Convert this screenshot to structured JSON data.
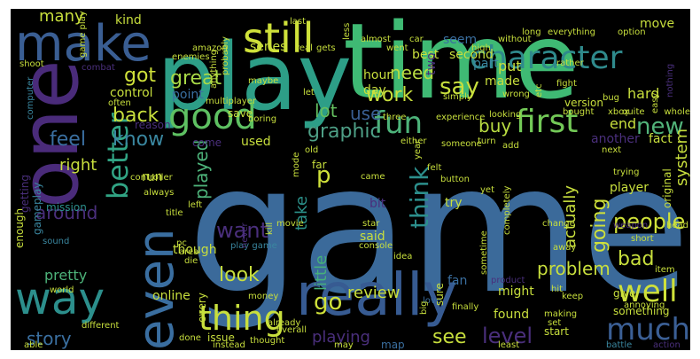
{
  "words": [
    {
      "text": "game",
      "size": 200,
      "color": "#3b6a9a",
      "rot": 0
    },
    {
      "text": "time",
      "size": 118,
      "color": "#3fba74",
      "rot": 0
    },
    {
      "text": "play",
      "size": 104,
      "color": "#2d9e87",
      "rot": 0
    },
    {
      "text": "one",
      "size": 90,
      "color": "#4a2b7a",
      "rot": 90
    },
    {
      "text": "make",
      "size": 56,
      "color": "#3a5e93",
      "rot": 0
    },
    {
      "text": "still",
      "size": 46,
      "color": "#cfe13a",
      "rot": 0
    },
    {
      "text": "character",
      "size": 36,
      "color": "#2f8a8c",
      "rot": 0
    },
    {
      "text": "even",
      "size": 56,
      "color": "#3a6ea0",
      "rot": 90
    },
    {
      "text": "really",
      "size": 66,
      "color": "#375b92",
      "rot": 0
    },
    {
      "text": "way",
      "size": 50,
      "color": "#2c8f8c",
      "rot": 0
    },
    {
      "text": "good",
      "size": 40,
      "color": "#5ec162",
      "rot": 0
    },
    {
      "text": "better",
      "size": 32,
      "color": "#31a484",
      "rot": 90
    },
    {
      "text": "thing",
      "size": 38,
      "color": "#c8df3d",
      "rot": 0
    },
    {
      "text": "fun",
      "size": 34,
      "color": "#4db37a",
      "rot": 0
    },
    {
      "text": "first",
      "size": 36,
      "color": "#73c957",
      "rot": 0
    },
    {
      "text": "well",
      "size": 34,
      "color": "#cfe13a",
      "rot": 0
    },
    {
      "text": "much",
      "size": 34,
      "color": "#3b5f95",
      "rot": 0
    },
    {
      "text": "think",
      "size": 28,
      "color": "#2c8f8c",
      "rot": 90
    },
    {
      "text": "people",
      "size": 24,
      "color": "#cfe13a",
      "rot": 0
    },
    {
      "text": "new",
      "size": 26,
      "color": "#52b37a",
      "rot": 0
    },
    {
      "text": "graphic",
      "size": 22,
      "color": "#4e9f86",
      "rot": 0
    },
    {
      "text": "great",
      "size": 22,
      "color": "#a9da47",
      "rot": 0
    },
    {
      "text": "got",
      "size": 22,
      "color": "#cfe13a",
      "rot": 0
    },
    {
      "text": "back",
      "size": 22,
      "color": "#c8df3d",
      "rot": 0
    },
    {
      "text": "say",
      "size": 26,
      "color": "#c8df3d",
      "rot": 0
    },
    {
      "text": "need",
      "size": 20,
      "color": "#b9dd42",
      "rot": 0
    },
    {
      "text": "work",
      "size": 22,
      "color": "#c8df3d",
      "rot": 0
    },
    {
      "text": "lot",
      "size": 20,
      "color": "#64bf5f",
      "rot": 0
    },
    {
      "text": "use",
      "size": 20,
      "color": "#3a5f93",
      "rot": 0
    },
    {
      "text": "buy",
      "size": 20,
      "color": "#b9dd42",
      "rot": 0
    },
    {
      "text": "know",
      "size": 22,
      "color": "#3a87a0",
      "rot": 0
    },
    {
      "text": "feel",
      "size": 22,
      "color": "#3a6fa0",
      "rot": 0
    },
    {
      "text": "right",
      "size": 18,
      "color": "#c8df3d",
      "rot": 0
    },
    {
      "text": "around",
      "size": 20,
      "color": "#4a2f7c",
      "rot": 0
    },
    {
      "text": "played",
      "size": 20,
      "color": "#4db37a",
      "rot": 90
    },
    {
      "text": "take",
      "size": 18,
      "color": "#2b9089",
      "rot": 90
    },
    {
      "text": "little",
      "size": 18,
      "color": "#46b07a",
      "rot": 90
    },
    {
      "text": "p",
      "size": 26,
      "color": "#cfe13a",
      "rot": 0
    },
    {
      "text": "want",
      "size": 24,
      "color": "#4a2f7c",
      "rot": 0
    },
    {
      "text": "look",
      "size": 22,
      "color": "#c8df3d",
      "rot": 0
    },
    {
      "text": "go",
      "size": 26,
      "color": "#cfe13a",
      "rot": 0
    },
    {
      "text": "review",
      "size": 18,
      "color": "#c8df3d",
      "rot": 0
    },
    {
      "text": "problem",
      "size": 20,
      "color": "#c8df3d",
      "rot": 0
    },
    {
      "text": "bad",
      "size": 22,
      "color": "#c8df3d",
      "rot": 0
    },
    {
      "text": "going",
      "size": 22,
      "color": "#cfe13a",
      "rot": 90
    },
    {
      "text": "actually",
      "size": 18,
      "color": "#c8df3d",
      "rot": 90
    },
    {
      "text": "see",
      "size": 22,
      "color": "#c8df3d",
      "rot": 0
    },
    {
      "text": "level",
      "size": 24,
      "color": "#4a2f7c",
      "rot": 0
    },
    {
      "text": "playing",
      "size": 18,
      "color": "#4a2f7c",
      "rot": 0
    },
    {
      "text": "story",
      "size": 20,
      "color": "#3a6fa0",
      "rot": 0
    },
    {
      "text": "pretty",
      "size": 16,
      "color": "#4db37a",
      "rot": 0
    },
    {
      "text": "system",
      "size": 18,
      "color": "#c8df3d",
      "rot": 90
    },
    {
      "text": "many",
      "size": 18,
      "color": "#c8df3d",
      "rot": 0
    },
    {
      "text": "kind",
      "size": 14,
      "color": "#c8df3d",
      "rot": 0
    },
    {
      "text": "series",
      "size": 14,
      "color": "#c8df3d",
      "rot": 0
    },
    {
      "text": "point",
      "size": 14,
      "color": "#3a6fa0",
      "rot": 0
    },
    {
      "text": "control",
      "size": 14,
      "color": "#c8df3d",
      "rot": 0
    },
    {
      "text": "reason",
      "size": 12,
      "color": "#4a2f7c",
      "rot": 0
    },
    {
      "text": "hour",
      "size": 14,
      "color": "#c8df3d",
      "rot": 0
    },
    {
      "text": "day",
      "size": 14,
      "color": "#c8df3d",
      "rot": 0
    },
    {
      "text": "part",
      "size": 14,
      "color": "#3a87a0",
      "rot": 0
    },
    {
      "text": "put",
      "size": 16,
      "color": "#c8df3d",
      "rot": 0
    },
    {
      "text": "made",
      "size": 14,
      "color": "#c8df3d",
      "rot": 0
    },
    {
      "text": "best",
      "size": 14,
      "color": "#c8df3d",
      "rot": 0
    },
    {
      "text": "second",
      "size": 14,
      "color": "#c8df3d",
      "rot": 0
    },
    {
      "text": "seem",
      "size": 14,
      "color": "#3a6fa0",
      "rot": 0
    },
    {
      "text": "two",
      "size": 14,
      "color": "#4a2f7c",
      "rot": 90
    },
    {
      "text": "move",
      "size": 14,
      "color": "#c8df3d",
      "rot": 0
    },
    {
      "text": "hard",
      "size": 16,
      "color": "#c8df3d",
      "rot": 0
    },
    {
      "text": "end",
      "size": 16,
      "color": "#c8df3d",
      "rot": 0
    },
    {
      "text": "another",
      "size": 14,
      "color": "#4a2f7c",
      "rot": 0
    },
    {
      "text": "fact",
      "size": 14,
      "color": "#c8df3d",
      "rot": 0
    },
    {
      "text": "used",
      "size": 14,
      "color": "#c8df3d",
      "rot": 0
    },
    {
      "text": "save",
      "size": 12,
      "color": "#c8df3d",
      "rot": 0
    },
    {
      "text": "come",
      "size": 12,
      "color": "#4a2f7c",
      "rot": 0
    },
    {
      "text": "mission",
      "size": 12,
      "color": "#2c8f8c",
      "rot": 0
    },
    {
      "text": "run",
      "size": 14,
      "color": "#c8df3d",
      "rot": 0
    },
    {
      "text": "bit",
      "size": 14,
      "color": "#4a2f7c",
      "rot": 0
    },
    {
      "text": "try",
      "size": 14,
      "color": "#c8df3d",
      "rot": 0
    },
    {
      "text": "player",
      "size": 14,
      "color": "#c8df3d",
      "rot": 0
    },
    {
      "text": "said",
      "size": 14,
      "color": "#c8df3d",
      "rot": 0
    },
    {
      "text": "though",
      "size": 14,
      "color": "#c8df3d",
      "rot": 0
    },
    {
      "text": "online",
      "size": 14,
      "color": "#c8df3d",
      "rot": 0
    },
    {
      "text": "fan",
      "size": 14,
      "color": "#3a6fa0",
      "rot": 0
    },
    {
      "text": "might",
      "size": 14,
      "color": "#c8df3d",
      "rot": 0
    },
    {
      "text": "found",
      "size": 14,
      "color": "#c8df3d",
      "rot": 0
    },
    {
      "text": "something",
      "size": 12,
      "color": "#c8df3d",
      "rot": 0
    },
    {
      "text": "give",
      "size": 12,
      "color": "#c8df3d",
      "rot": 0
    },
    {
      "text": "enough",
      "size": 12,
      "color": "#c8df3d",
      "rot": 90
    },
    {
      "text": "getting",
      "size": 12,
      "color": "#4a2f7c",
      "rot": 90
    },
    {
      "text": "gameplay",
      "size": 12,
      "color": "#3a87a0",
      "rot": 90
    },
    {
      "text": "start",
      "size": 12,
      "color": "#c8df3d",
      "rot": 0
    },
    {
      "text": "map",
      "size": 12,
      "color": "#3a6fa0",
      "rot": 0
    },
    {
      "text": "every",
      "size": 12,
      "color": "#c8df3d",
      "rot": 90
    },
    {
      "text": "issue",
      "size": 12,
      "color": "#c8df3d",
      "rot": 0
    },
    {
      "text": "different",
      "size": 10,
      "color": "#c8df3d",
      "rot": 0
    },
    {
      "text": "done",
      "size": 10,
      "color": "#c8df3d",
      "rot": 0
    },
    {
      "text": "thought",
      "size": 10,
      "color": "#c8df3d",
      "rot": 0
    },
    {
      "text": "instead",
      "size": 10,
      "color": "#c8df3d",
      "rot": 0
    },
    {
      "text": "able",
      "size": 10,
      "color": "#c8df3d",
      "rot": 0
    },
    {
      "text": "battle",
      "size": 10,
      "color": "#3a87a0",
      "rot": 0
    },
    {
      "text": "action",
      "size": 10,
      "color": "#4a2f7c",
      "rot": 0
    },
    {
      "text": "play game",
      "size": 10,
      "color": "#3a87a0",
      "rot": 0
    },
    {
      "text": "money",
      "size": 10,
      "color": "#c8df3d",
      "rot": 0
    },
    {
      "text": "already",
      "size": 10,
      "color": "#c8df3d",
      "rot": 0
    },
    {
      "text": "least",
      "size": 10,
      "color": "#c8df3d",
      "rot": 0
    },
    {
      "text": "finally",
      "size": 10,
      "color": "#c8df3d",
      "rot": 0
    },
    {
      "text": "keep",
      "size": 10,
      "color": "#c8df3d",
      "rot": 0
    },
    {
      "text": "making",
      "size": 10,
      "color": "#c8df3d",
      "rot": 0
    },
    {
      "text": "annoying",
      "size": 10,
      "color": "#c8df3d",
      "rot": 0
    },
    {
      "text": "item",
      "size": 10,
      "color": "#c8df3d",
      "rot": 0
    },
    {
      "text": "hit",
      "size": 10,
      "color": "#c8df3d",
      "rot": 0
    },
    {
      "text": "love",
      "size": 10,
      "color": "#3a6fa0",
      "rot": 0
    },
    {
      "text": "sure",
      "size": 12,
      "color": "#c8df3d",
      "rot": 90
    },
    {
      "text": "big",
      "size": 10,
      "color": "#c8df3d",
      "rot": 90
    },
    {
      "text": "sometime",
      "size": 10,
      "color": "#c8df3d",
      "rot": 90
    },
    {
      "text": "product",
      "size": 10,
      "color": "#4a2f7c",
      "rot": 0
    },
    {
      "text": "world",
      "size": 10,
      "color": "#c8df3d",
      "rot": 0
    },
    {
      "text": "sound",
      "size": 10,
      "color": "#3a87a0",
      "rot": 0
    },
    {
      "text": "die",
      "size": 10,
      "color": "#c8df3d",
      "rot": 0
    },
    {
      "text": "pc",
      "size": 10,
      "color": "#c8df3d",
      "rot": 0
    },
    {
      "text": "area",
      "size": 10,
      "color": "#c8df3d",
      "rot": 0
    },
    {
      "text": "console",
      "size": 10,
      "color": "#c8df3d",
      "rot": 0
    },
    {
      "text": "star",
      "size": 10,
      "color": "#c8df3d",
      "rot": 0
    },
    {
      "text": "movie",
      "size": 10,
      "color": "#c8df3d",
      "rot": 0
    },
    {
      "text": "title",
      "size": 10,
      "color": "#c8df3d",
      "rot": 0
    },
    {
      "text": "never",
      "size": 10,
      "color": "#4a2f7c",
      "rot": 90
    },
    {
      "text": "kill",
      "size": 10,
      "color": "#c8df3d",
      "rot": 90
    },
    {
      "text": "left",
      "size": 10,
      "color": "#c8df3d",
      "rot": 0
    },
    {
      "text": "always",
      "size": 10,
      "color": "#c8df3d",
      "rot": 0
    },
    {
      "text": "controller",
      "size": 10,
      "color": "#c8df3d",
      "rot": 0
    },
    {
      "text": "multiplayer",
      "size": 10,
      "color": "#c8df3d",
      "rot": 0
    },
    {
      "text": "often",
      "size": 10,
      "color": "#c8df3d",
      "rot": 0
    },
    {
      "text": "probably",
      "size": 10,
      "color": "#c8df3d",
      "rot": 90
    },
    {
      "text": "anything",
      "size": 10,
      "color": "#c8df3d",
      "rot": 90
    },
    {
      "text": "maybe",
      "size": 10,
      "color": "#c8df3d",
      "rot": 0
    },
    {
      "text": "enemies",
      "size": 10,
      "color": "#c8df3d",
      "rot": 0
    },
    {
      "text": "amazon",
      "size": 10,
      "color": "#c8df3d",
      "rot": 0
    },
    {
      "text": "combat",
      "size": 10,
      "color": "#4a2f7c",
      "rot": 0
    },
    {
      "text": "shoot",
      "size": 10,
      "color": "#c8df3d",
      "rot": 0
    },
    {
      "text": "computer",
      "size": 10,
      "color": "#3a87a0",
      "rot": 90
    },
    {
      "text": "game play",
      "size": 10,
      "color": "#c8df3d",
      "rot": 90
    },
    {
      "text": "last",
      "size": 10,
      "color": "#c8df3d",
      "rot": 0
    },
    {
      "text": "real",
      "size": 10,
      "color": "#c8df3d",
      "rot": 0
    },
    {
      "text": "gets",
      "size": 10,
      "color": "#c8df3d",
      "rot": 0
    },
    {
      "text": "less",
      "size": 10,
      "color": "#c8df3d",
      "rot": 90
    },
    {
      "text": "almost",
      "size": 10,
      "color": "#c8df3d",
      "rot": 0
    },
    {
      "text": "went",
      "size": 10,
      "color": "#c8df3d",
      "rot": 0
    },
    {
      "text": "car",
      "size": 10,
      "color": "#c8df3d",
      "rot": 0
    },
    {
      "text": "high",
      "size": 10,
      "color": "#c8df3d",
      "rot": 0
    },
    {
      "text": "without",
      "size": 10,
      "color": "#c8df3d",
      "rot": 0
    },
    {
      "text": "long",
      "size": 10,
      "color": "#c8df3d",
      "rot": 0
    },
    {
      "text": "everything",
      "size": 10,
      "color": "#c8df3d",
      "rot": 0
    },
    {
      "text": "option",
      "size": 10,
      "color": "#c8df3d",
      "rot": 0
    },
    {
      "text": "fight",
      "size": 10,
      "color": "#c8df3d",
      "rot": 0
    },
    {
      "text": "bug",
      "size": 10,
      "color": "#c8df3d",
      "rot": 0
    },
    {
      "text": "rather",
      "size": 10,
      "color": "#c8df3d",
      "rot": 0
    },
    {
      "text": "easy",
      "size": 10,
      "color": "#c8df3d",
      "rot": 90
    },
    {
      "text": "whole",
      "size": 10,
      "color": "#c8df3d",
      "rot": 0
    },
    {
      "text": "quite",
      "size": 10,
      "color": "#c8df3d",
      "rot": 0
    },
    {
      "text": "xbox",
      "size": 10,
      "color": "#c8df3d",
      "rot": 0
    },
    {
      "text": "bought",
      "size": 10,
      "color": "#c8df3d",
      "rot": 0
    },
    {
      "text": "etc",
      "size": 10,
      "color": "#c8df3d",
      "rot": 90
    },
    {
      "text": "version",
      "size": 12,
      "color": "#c8df3d",
      "rot": 0
    },
    {
      "text": "nothing",
      "size": 10,
      "color": "#4a2f7c",
      "rot": 90
    },
    {
      "text": "wrong",
      "size": 10,
      "color": "#c8df3d",
      "rot": 0
    },
    {
      "text": "simply",
      "size": 10,
      "color": "#c8df3d",
      "rot": 0
    },
    {
      "text": "let",
      "size": 10,
      "color": "#c8df3d",
      "rot": 0
    },
    {
      "text": "experience",
      "size": 10,
      "color": "#c8df3d",
      "rot": 0
    },
    {
      "text": "looking",
      "size": 10,
      "color": "#c8df3d",
      "rot": 0
    },
    {
      "text": "three",
      "size": 10,
      "color": "#c8df3d",
      "rot": 0
    },
    {
      "text": "boring",
      "size": 10,
      "color": "#c8df3d",
      "rot": 0
    },
    {
      "text": "either",
      "size": 10,
      "color": "#c8df3d",
      "rot": 0
    },
    {
      "text": "someone",
      "size": 10,
      "color": "#c8df3d",
      "rot": 0
    },
    {
      "text": "turn",
      "size": 10,
      "color": "#c8df3d",
      "rot": 0
    },
    {
      "text": "add",
      "size": 10,
      "color": "#c8df3d",
      "rot": 0
    },
    {
      "text": "old",
      "size": 10,
      "color": "#c8df3d",
      "rot": 0
    },
    {
      "text": "next",
      "size": 10,
      "color": "#c8df3d",
      "rot": 0
    },
    {
      "text": "year",
      "size": 10,
      "color": "#c8df3d",
      "rot": 90
    },
    {
      "text": "far",
      "size": 12,
      "color": "#c8df3d",
      "rot": 0
    },
    {
      "text": "mode",
      "size": 10,
      "color": "#c8df3d",
      "rot": 90
    },
    {
      "text": "came",
      "size": 10,
      "color": "#c8df3d",
      "rot": 0
    },
    {
      "text": "felt",
      "size": 10,
      "color": "#c8df3d",
      "rot": 0
    },
    {
      "text": "button",
      "size": 10,
      "color": "#c8df3d",
      "rot": 0
    },
    {
      "text": "yet",
      "size": 10,
      "color": "#c8df3d",
      "rot": 0
    },
    {
      "text": "completely",
      "size": 10,
      "color": "#c8df3d",
      "rot": 90
    },
    {
      "text": "change",
      "size": 10,
      "color": "#c8df3d",
      "rot": 0
    },
    {
      "text": "trying",
      "size": 10,
      "color": "#c8df3d",
      "rot": 0
    },
    {
      "text": "original",
      "size": 12,
      "color": "#c8df3d",
      "rot": 90
    },
    {
      "text": "weapon",
      "size": 10,
      "color": "#4a2f7c",
      "rot": 0
    },
    {
      "text": "short",
      "size": 10,
      "color": "#c8df3d",
      "rot": 0
    },
    {
      "text": "away",
      "size": 10,
      "color": "#c8df3d",
      "rot": 0
    },
    {
      "text": "head",
      "size": 10,
      "color": "#c8df3d",
      "rot": 0
    },
    {
      "text": "overall",
      "size": 10,
      "color": "#c8df3d",
      "rot": 0
    },
    {
      "text": "may",
      "size": 10,
      "color": "#c8df3d",
      "rot": 0
    },
    {
      "text": "set",
      "size": 10,
      "color": "#c8df3d",
      "rot": 0
    },
    {
      "text": "idea",
      "size": 10,
      "color": "#c8df3d",
      "rot": 0
    }
  ]
}
